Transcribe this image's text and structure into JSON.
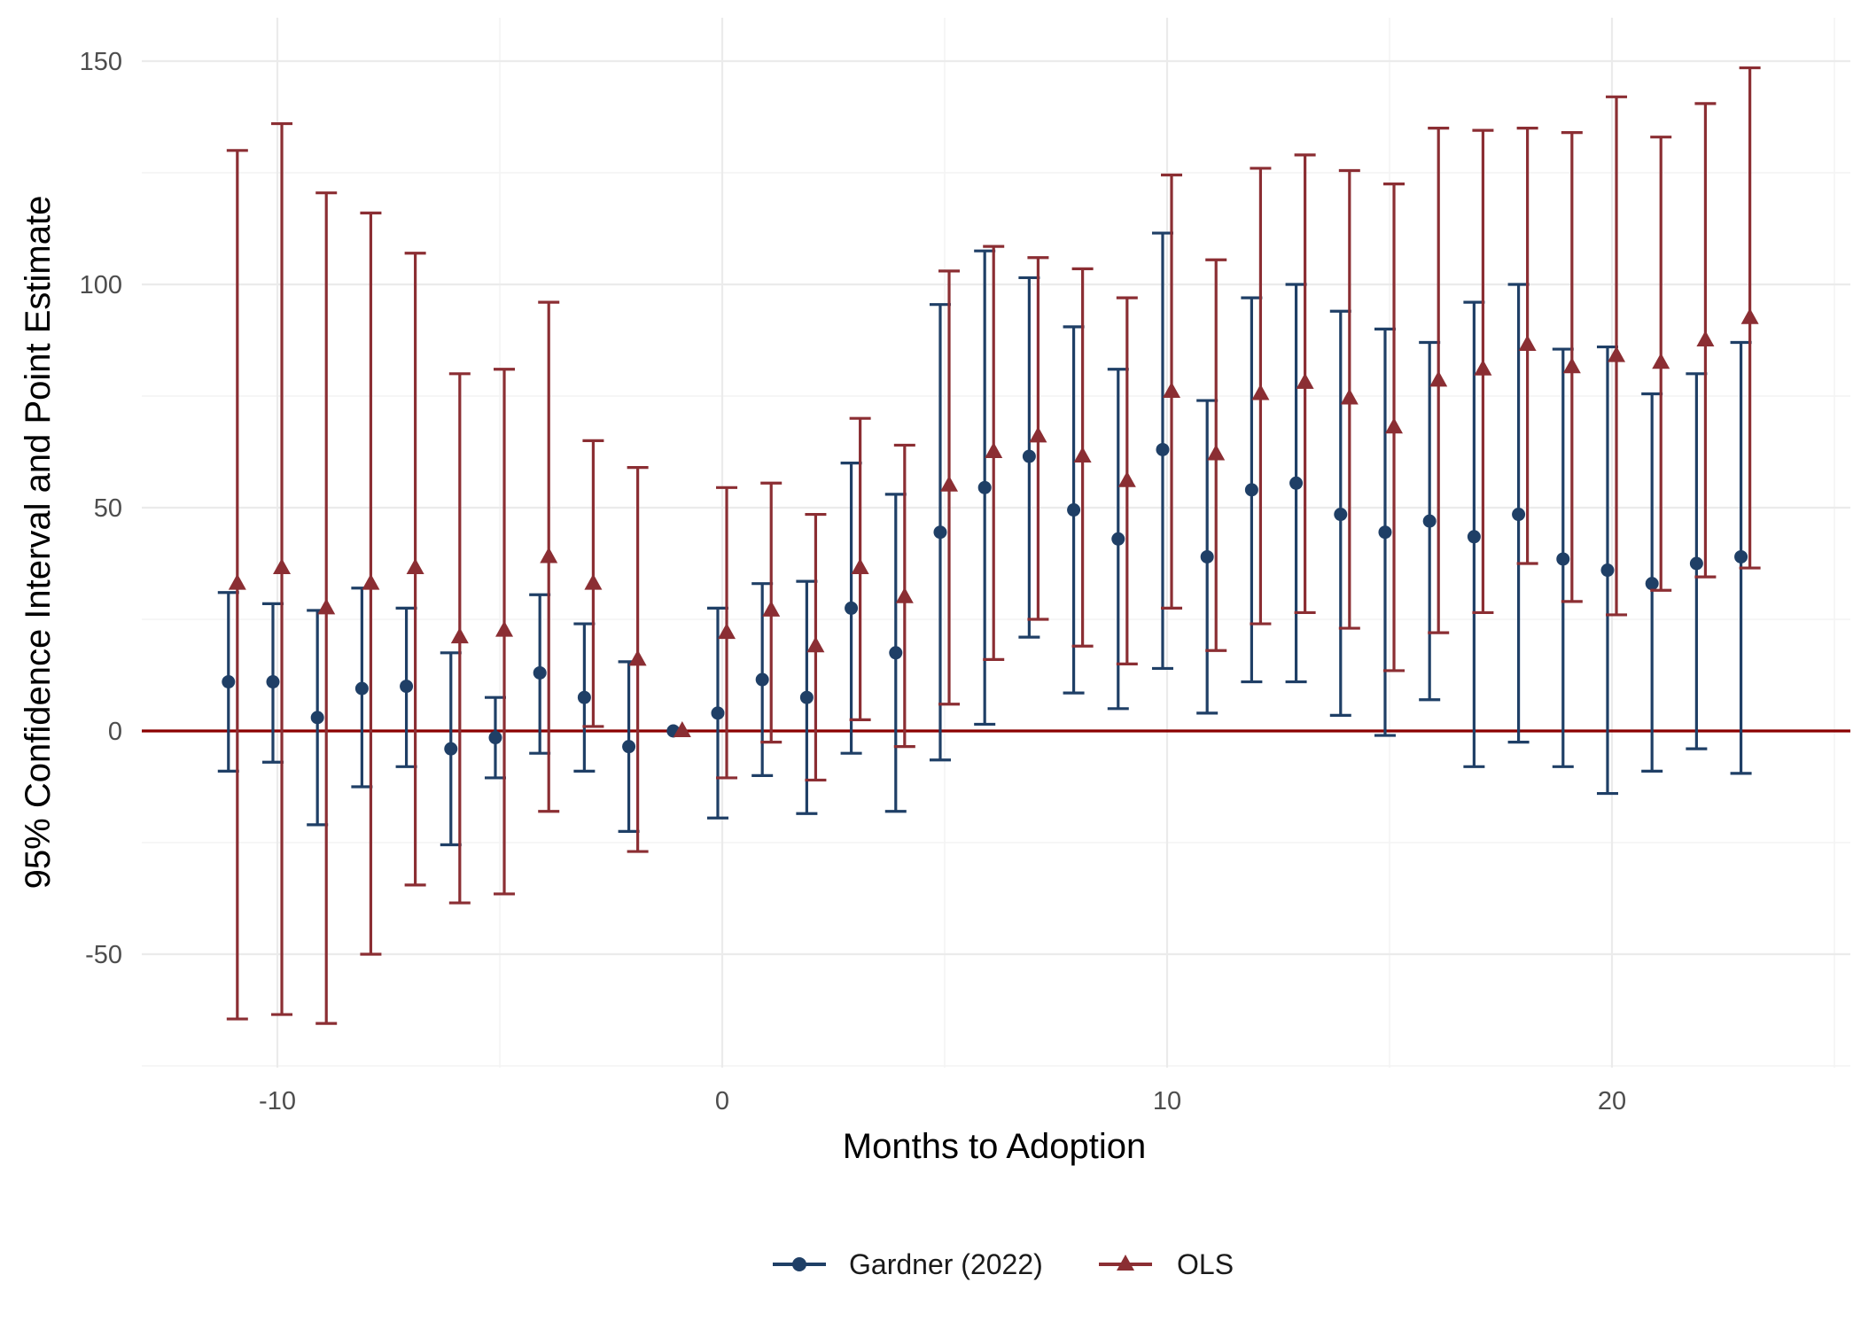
{
  "chart_data": {
    "type": "scatter",
    "subtype": "coefficient plot with 95% confidence-interval error bars",
    "xlabel": "Months to Adoption",
    "ylabel": "95% Confidence Interval and Point Estimate",
    "xlim": [
      -13,
      25.5
    ],
    "ylim": [
      -75,
      160
    ],
    "x_ticks": [
      -10,
      0,
      10,
      20
    ],
    "x_tick_labels": [
      "-10",
      "0",
      "10",
      "20"
    ],
    "y_ticks": [
      -50,
      0,
      50,
      100,
      150
    ],
    "y_tick_labels": [
      "-50",
      "0",
      "50",
      "100",
      "150"
    ],
    "grid": true,
    "reference_line": {
      "y": 0,
      "color": "#8b0000"
    },
    "legend": {
      "position": "bottom",
      "entries": [
        "Gardner (2022)",
        "OLS"
      ]
    },
    "series": [
      {
        "name": "Gardner (2022)",
        "color": "#1f3f66",
        "marker": "circle",
        "x_offset": -0.1,
        "points": [
          {
            "x": -11,
            "est": 11,
            "lo": -9,
            "hi": 31
          },
          {
            "x": -10,
            "est": 11,
            "lo": -7,
            "hi": 28.5
          },
          {
            "x": -9,
            "est": 3,
            "lo": -21,
            "hi": 27
          },
          {
            "x": -8,
            "est": 9.5,
            "lo": -12.5,
            "hi": 32
          },
          {
            "x": -7,
            "est": 10,
            "lo": -8,
            "hi": 27.5
          },
          {
            "x": -6,
            "est": -4,
            "lo": -25.5,
            "hi": 17.5
          },
          {
            "x": -5,
            "est": -1.5,
            "lo": -10.5,
            "hi": 7.5
          },
          {
            "x": -4,
            "est": 13,
            "lo": -5,
            "hi": 30.5
          },
          {
            "x": -3,
            "est": 7.5,
            "lo": -9,
            "hi": 24
          },
          {
            "x": -2,
            "est": -3.5,
            "lo": -22.5,
            "hi": 15.5
          },
          {
            "x": -1,
            "est": 0,
            "lo": 0,
            "hi": 0
          },
          {
            "x": 0,
            "est": 4,
            "lo": -19.5,
            "hi": 27.5
          },
          {
            "x": 1,
            "est": 11.5,
            "lo": -10,
            "hi": 33
          },
          {
            "x": 2,
            "est": 7.5,
            "lo": -18.5,
            "hi": 33.5
          },
          {
            "x": 3,
            "est": 27.5,
            "lo": -5,
            "hi": 60
          },
          {
            "x": 4,
            "est": 17.5,
            "lo": -18,
            "hi": 53
          },
          {
            "x": 5,
            "est": 44.5,
            "lo": -6.5,
            "hi": 95.5
          },
          {
            "x": 6,
            "est": 54.5,
            "lo": 1.5,
            "hi": 107.5
          },
          {
            "x": 7,
            "est": 61.5,
            "lo": 21,
            "hi": 101.5
          },
          {
            "x": 8,
            "est": 49.5,
            "lo": 8.5,
            "hi": 90.5
          },
          {
            "x": 9,
            "est": 43,
            "lo": 5,
            "hi": 81
          },
          {
            "x": 10,
            "est": 63,
            "lo": 14,
            "hi": 111.5
          },
          {
            "x": 11,
            "est": 39,
            "lo": 4,
            "hi": 74
          },
          {
            "x": 12,
            "est": 54,
            "lo": 11,
            "hi": 97
          },
          {
            "x": 13,
            "est": 55.5,
            "lo": 11,
            "hi": 100
          },
          {
            "x": 14,
            "est": 48.5,
            "lo": 3.5,
            "hi": 94
          },
          {
            "x": 15,
            "est": 44.5,
            "lo": -1,
            "hi": 90
          },
          {
            "x": 16,
            "est": 47,
            "lo": 7,
            "hi": 87
          },
          {
            "x": 17,
            "est": 43.5,
            "lo": -8,
            "hi": 96
          },
          {
            "x": 18,
            "est": 48.5,
            "lo": -2.5,
            "hi": 100
          },
          {
            "x": 19,
            "est": 38.5,
            "lo": -8,
            "hi": 85.5
          },
          {
            "x": 20,
            "est": 36,
            "lo": -14,
            "hi": 86
          },
          {
            "x": 21,
            "est": 33,
            "lo": -9,
            "hi": 75.5
          },
          {
            "x": 22,
            "est": 37.5,
            "lo": -4,
            "hi": 80
          },
          {
            "x": 23,
            "est": 39,
            "lo": -9.5,
            "hi": 87
          }
        ]
      },
      {
        "name": "OLS",
        "color": "#8b2e33",
        "marker": "triangle",
        "x_offset": 0.1,
        "points": [
          {
            "x": -11,
            "est": 33,
            "lo": -64.5,
            "hi": 130
          },
          {
            "x": -10,
            "est": 36.5,
            "lo": -63.5,
            "hi": 136
          },
          {
            "x": -9,
            "est": 27.5,
            "lo": -65.5,
            "hi": 120.5
          },
          {
            "x": -8,
            "est": 33,
            "lo": -50,
            "hi": 116
          },
          {
            "x": -7,
            "est": 36.5,
            "lo": -34.5,
            "hi": 107
          },
          {
            "x": -6,
            "est": 21,
            "lo": -38.5,
            "hi": 80
          },
          {
            "x": -5,
            "est": 22.5,
            "lo": -36.5,
            "hi": 81
          },
          {
            "x": -4,
            "est": 39,
            "lo": -18,
            "hi": 96
          },
          {
            "x": -3,
            "est": 33,
            "lo": 1,
            "hi": 65
          },
          {
            "x": -2,
            "est": 16,
            "lo": -27,
            "hi": 59
          },
          {
            "x": -1,
            "est": 0,
            "lo": 0,
            "hi": 0
          },
          {
            "x": 0,
            "est": 22,
            "lo": -10.5,
            "hi": 54.5
          },
          {
            "x": 1,
            "est": 27,
            "lo": -2.5,
            "hi": 55.5
          },
          {
            "x": 2,
            "est": 19,
            "lo": -11,
            "hi": 48.5
          },
          {
            "x": 3,
            "est": 36.5,
            "lo": 2.5,
            "hi": 70
          },
          {
            "x": 4,
            "est": 30,
            "lo": -3.5,
            "hi": 64
          },
          {
            "x": 5,
            "est": 55,
            "lo": 6,
            "hi": 103
          },
          {
            "x": 6,
            "est": 62.5,
            "lo": 16,
            "hi": 108.5
          },
          {
            "x": 7,
            "est": 66,
            "lo": 25,
            "hi": 106
          },
          {
            "x": 8,
            "est": 61.5,
            "lo": 19,
            "hi": 103.5
          },
          {
            "x": 9,
            "est": 56,
            "lo": 15,
            "hi": 97
          },
          {
            "x": 10,
            "est": 76,
            "lo": 27.5,
            "hi": 124.5
          },
          {
            "x": 11,
            "est": 62,
            "lo": 18,
            "hi": 105.5
          },
          {
            "x": 12,
            "est": 75.5,
            "lo": 24,
            "hi": 126
          },
          {
            "x": 13,
            "est": 78,
            "lo": 26.5,
            "hi": 129
          },
          {
            "x": 14,
            "est": 74.5,
            "lo": 23,
            "hi": 125.5
          },
          {
            "x": 15,
            "est": 68,
            "lo": 13.5,
            "hi": 122.5
          },
          {
            "x": 16,
            "est": 78.5,
            "lo": 22,
            "hi": 135
          },
          {
            "x": 17,
            "est": 81,
            "lo": 26.5,
            "hi": 134.5
          },
          {
            "x": 18,
            "est": 86.5,
            "lo": 37.5,
            "hi": 135
          },
          {
            "x": 19,
            "est": 81.5,
            "lo": 29,
            "hi": 134
          },
          {
            "x": 20,
            "est": 84,
            "lo": 26,
            "hi": 142
          },
          {
            "x": 21,
            "est": 82.5,
            "lo": 31.5,
            "hi": 133
          },
          {
            "x": 22,
            "est": 87.5,
            "lo": 34.5,
            "hi": 140.5
          },
          {
            "x": 23,
            "est": 92.5,
            "lo": 36.5,
            "hi": 148.5
          }
        ]
      }
    ]
  }
}
